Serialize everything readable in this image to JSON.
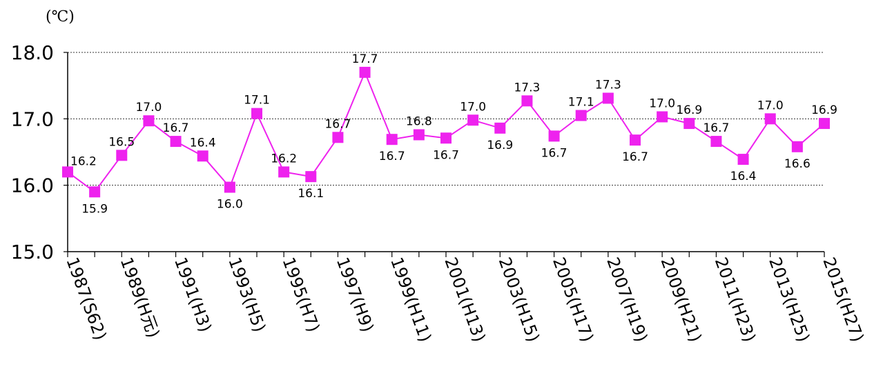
{
  "chart_data": {
    "type": "line",
    "unit_label": "(℃)",
    "ylim": [
      15.0,
      18.0
    ],
    "yticks": [
      "15.0",
      "16.0",
      "17.0",
      "18.0"
    ],
    "grid": true,
    "legend": "none",
    "x": [
      1987,
      1988,
      1989,
      1990,
      1991,
      1992,
      1993,
      1994,
      1995,
      1996,
      1997,
      1998,
      1999,
      2000,
      2001,
      2002,
      2003,
      2004,
      2005,
      2006,
      2007,
      2008,
      2009,
      2010,
      2011,
      2012,
      2013,
      2014,
      2015
    ],
    "x_tick_labels": [
      "1987(S62)",
      "1989(H元)",
      "1991(H3)",
      "1993(H5)",
      "1995(H7)",
      "1997(H9)",
      "1999(H11)",
      "2001(H13)",
      "2003(H15)",
      "2005(H17)",
      "2007(H19)",
      "2009(H21)",
      "2011(H23)",
      "2013(H25)",
      "2015(H27)"
    ],
    "values": [
      16.2,
      15.9,
      16.45,
      16.97,
      16.66,
      16.44,
      15.97,
      17.08,
      16.2,
      16.13,
      16.72,
      17.7,
      16.69,
      16.76,
      16.71,
      16.98,
      16.86,
      17.27,
      16.74,
      17.05,
      17.31,
      16.68,
      17.03,
      16.93,
      16.66,
      16.39,
      17.0,
      16.58,
      16.93
    ],
    "data_labels": [
      "16.2",
      "15.9",
      "16.5",
      "17.0",
      "16.7",
      "16.4",
      "16.0",
      "17.1",
      "16.2",
      "16.1",
      "16.7",
      "17.7",
      "16.7",
      "16.8",
      "16.7",
      "17.0",
      "16.9",
      "17.3",
      "16.7",
      "17.1",
      "17.3",
      "16.7",
      "17.0",
      "16.9",
      "16.7",
      "16.4",
      "17.0",
      "16.6",
      "16.9"
    ],
    "color": "#ee22ee"
  }
}
